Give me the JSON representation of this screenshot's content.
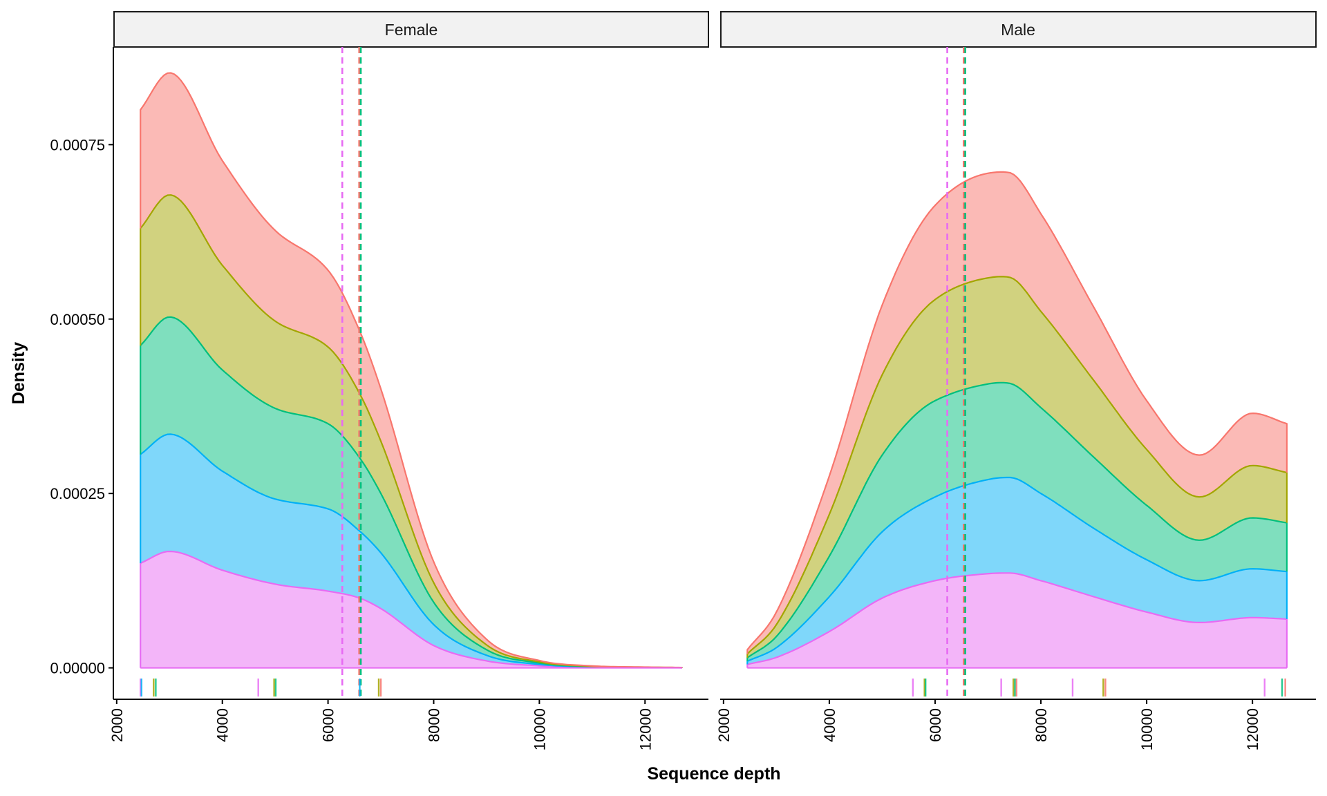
{
  "chart_data": {
    "type": "area",
    "subtype": "stacked density",
    "xlabel": "Sequence depth",
    "ylabel": "Density",
    "xlim": [
      1950,
      13200
    ],
    "ylim": [
      -4.5e-05,
      0.00089
    ],
    "x_ticks": [
      2000,
      4000,
      6000,
      8000,
      10000,
      12000
    ],
    "x_tick_labels": [
      "2000",
      "4000",
      "6000",
      "8000",
      "10000",
      "12000"
    ],
    "y_ticks": [
      0,
      0.00025,
      0.0005,
      0.00075
    ],
    "y_tick_labels": [
      "0.00000",
      "0.00025",
      "0.00050",
      "0.00075"
    ],
    "grid": false,
    "legend": "none",
    "series_colors": [
      "#f8766d",
      "#a3a500",
      "#00bf7d",
      "#00b0f6",
      "#e76bf3"
    ],
    "panels": [
      {
        "label": "Female",
        "x": [
          2450,
          3000,
          4000,
          5000,
          6000,
          6600,
          7000,
          8000,
          9000,
          10000,
          11000,
          12000,
          12700
        ],
        "series": [
          {
            "values": [
              0.00017,
              0.000175,
              0.00015,
              0.00013,
              0.00011,
              9e-05,
              7.5e-05,
              3e-05,
              8e-06,
              2e-06,
              5e-07,
              2e-07,
              1e-07
            ]
          },
          {
            "values": [
              0.000168,
              0.000175,
              0.00015,
              0.000125,
              0.00011,
              9.2e-05,
              7.5e-05,
              2.8e-05,
              7e-06,
              1.5e-06,
              5e-07,
              2e-07,
              1e-07
            ]
          },
          {
            "values": [
              0.000156,
              0.000168,
              0.000145,
              0.00013,
              0.000122,
              0.000105,
              8.5e-05,
              3.2e-05,
              8e-06,
              2e-06,
              5e-07,
              2e-07,
              1e-07
            ]
          },
          {
            "values": [
              0.000156,
              0.000168,
              0.000142,
              0.000122,
              0.000118,
              9.6e-05,
              8e-05,
              3e-05,
              8e-06,
              2e-06,
              5e-07,
              2e-07,
              1e-07
            ]
          },
          {
            "values": [
              0.00015,
              0.000167,
              0.00014,
              0.00012,
              0.00011,
              0.0001,
              8.5e-05,
              3.2e-05,
              1e-05,
              3e-06,
              8e-07,
              3e-07,
              1e-07
            ]
          }
        ],
        "mean_lines": [
          {
            "x": 6270,
            "color": "#e76bf3"
          },
          {
            "x": 6590,
            "color": "#f8766d"
          },
          {
            "x": 6620,
            "color": "#00bf7d"
          }
        ],
        "rug": [
          {
            "x": 2450,
            "color": "#e76bf3"
          },
          {
            "x": 2470,
            "color": "#00b0f6"
          },
          {
            "x": 2700,
            "color": "#a3a500"
          },
          {
            "x": 2740,
            "color": "#00bf7d"
          },
          {
            "x": 4680,
            "color": "#e76bf3"
          },
          {
            "x": 4980,
            "color": "#a3a500"
          },
          {
            "x": 5010,
            "color": "#00bf7d"
          },
          {
            "x": 6600,
            "color": "#00b0f6"
          },
          {
            "x": 6960,
            "color": "#a3a500"
          },
          {
            "x": 7000,
            "color": "#f8766d"
          }
        ]
      },
      {
        "label": "Male",
        "x": [
          2450,
          3000,
          4000,
          5000,
          6000,
          7000,
          7400,
          8000,
          9000,
          10000,
          11000,
          12000,
          12650
        ],
        "series": [
          {
            "values": [
              6e-06,
              1.8e-05,
              5.5e-05,
              0.0001,
              0.000135,
              0.00015,
              0.00015,
              0.00014,
              0.000105,
              7e-05,
              6e-05,
              7.5e-05,
              7e-05
            ]
          },
          {
            "values": [
              5.5e-06,
              1.7e-05,
              6e-05,
              0.000115,
              0.000145,
              0.000152,
              0.000152,
              0.000138,
              0.00011,
              8e-05,
              6.2e-05,
              7.5e-05,
              7.2e-05
            ]
          },
          {
            "values": [
              5e-06,
              1.6e-05,
              5.8e-05,
              0.00011,
              0.000138,
              0.000137,
              0.000135,
              0.000123,
              0.000102,
              7.8e-05,
              5.8e-05,
              7.3e-05,
              7e-05
            ]
          },
          {
            "values": [
              4.5e-06,
              1.4e-05,
              5e-05,
              9.5e-05,
              0.00012,
              0.000135,
              0.000137,
              0.000125,
              9.8e-05,
              7.5e-05,
              6e-05,
              7e-05,
              6.8e-05
            ]
          },
          {
            "values": [
              5e-06,
              1.5e-05,
              5.2e-05,
              0.0001,
              0.000125,
              0.000135,
              0.000136,
              0.000125,
              0.000102,
              8e-05,
              6.5e-05,
              7.2e-05,
              7e-05
            ]
          }
        ],
        "mean_lines": [
          {
            "x": 6230,
            "color": "#e76bf3"
          },
          {
            "x": 6540,
            "color": "#f8766d"
          },
          {
            "x": 6570,
            "color": "#00bf7d"
          }
        ],
        "rug": [
          {
            "x": 5580,
            "color": "#e76bf3"
          },
          {
            "x": 5800,
            "color": "#a3a500"
          },
          {
            "x": 5820,
            "color": "#00bf7d"
          },
          {
            "x": 7250,
            "color": "#e76bf3"
          },
          {
            "x": 7480,
            "color": "#a3a500"
          },
          {
            "x": 7510,
            "color": "#00bf7d"
          },
          {
            "x": 7540,
            "color": "#f8766d"
          },
          {
            "x": 8600,
            "color": "#e76bf3"
          },
          {
            "x": 9180,
            "color": "#a3a500"
          },
          {
            "x": 9220,
            "color": "#f8766d"
          },
          {
            "x": 12230,
            "color": "#e76bf3"
          },
          {
            "x": 12560,
            "color": "#00bf7d"
          },
          {
            "x": 12620,
            "color": "#f8766d"
          }
        ]
      }
    ]
  }
}
